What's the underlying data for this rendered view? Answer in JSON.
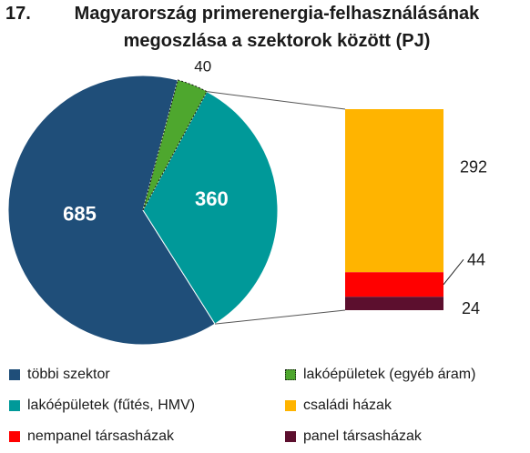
{
  "chart_data": {
    "type": "pie",
    "title_number": "17.",
    "title_line1": "Magyarország primerenergia-felhasználásának",
    "title_line2": "megoszlása a szektorok között (PJ)",
    "pie": {
      "slices": [
        {
          "name": "többi szektor",
          "value": 685,
          "label": "685",
          "color": "#1f4e79"
        },
        {
          "name": "lakóépületek (fűtés, HMV)",
          "value": 360,
          "label": "360",
          "color": "#009999"
        },
        {
          "name": "lakóépületek (egyéb áram)",
          "value": 40,
          "label": "40",
          "color": "#4ea72e"
        }
      ]
    },
    "bar": {
      "segments": [
        {
          "name": "családi házak",
          "value": 292,
          "label": "292",
          "color": "#ffb400"
        },
        {
          "name": "nempanel társasházak",
          "value": 44,
          "label": "44",
          "color": "#ff0000"
        },
        {
          "name": "panel társasházak",
          "value": 24,
          "label": "24",
          "color": "#5c0f2e"
        }
      ]
    },
    "legend": [
      {
        "name": "többi szektor",
        "color": "#1f4e79",
        "icon": "square-swatch"
      },
      {
        "name": "lakóépületek (egyéb áram)",
        "color": "#4ea72e",
        "icon": "dotted-square-swatch"
      },
      {
        "name": "lakóépületek (fűtés, HMV)",
        "color": "#009999",
        "icon": "square-swatch"
      },
      {
        "name": "családi házak",
        "color": "#ffb400",
        "icon": "square-swatch"
      },
      {
        "name": "nempanel társasházak",
        "color": "#ff0000",
        "icon": "square-swatch"
      },
      {
        "name": "panel társasházak",
        "color": "#5c0f2e",
        "icon": "square-swatch"
      }
    ]
  }
}
